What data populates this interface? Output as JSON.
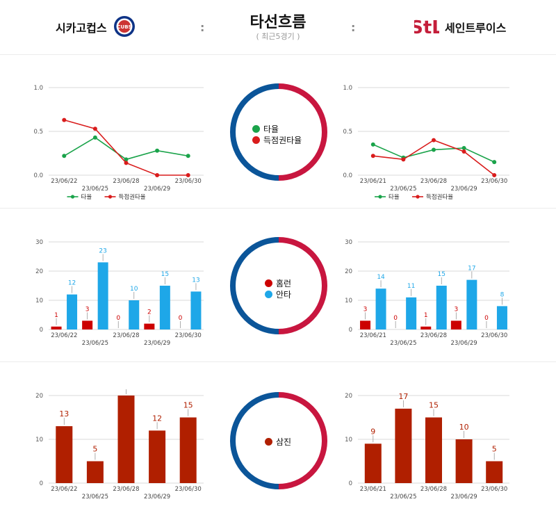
{
  "header": {
    "title": "타선흐름",
    "subtitle": "( 최근5경기 )",
    "left_team": "시카고컵스",
    "right_team": "세인트루이스",
    "left_logo_text": "CUBS",
    "right_logo_text": "StL",
    "separator": ":"
  },
  "colors": {
    "green": "#1aa34a",
    "red_line": "#d91c1c",
    "red_bar": "#cc0000",
    "blue_bar": "#1ea7e8",
    "so_bar": "#b01f00",
    "ring_blue": "#0b5599",
    "ring_red": "#c8163f"
  },
  "legends": {
    "avg": "타율",
    "risp": "득점권타율",
    "hr": "홈런",
    "hits": "안타",
    "so": "삼진"
  },
  "chart_data": [
    {
      "id": "left-avg",
      "type": "line",
      "categories": [
        "23/06/22",
        "23/06/25",
        "23/06/28",
        "23/06/29",
        "23/06/30"
      ],
      "ylim": [
        0,
        1.0
      ],
      "yticks": [
        "0.0",
        "0.5",
        "1.0"
      ],
      "series": [
        {
          "name": "타율",
          "values": [
            0.22,
            0.43,
            0.18,
            0.28,
            0.22
          ]
        },
        {
          "name": "득점권타율",
          "values": [
            0.63,
            0.53,
            0.14,
            0.0,
            0.0
          ]
        }
      ]
    },
    {
      "id": "right-avg",
      "type": "line",
      "categories": [
        "23/06/21",
        "23/06/25",
        "23/06/28",
        "23/06/29",
        "23/06/30"
      ],
      "ylim": [
        0,
        1.0
      ],
      "yticks": [
        "0.0",
        "0.5",
        "1.0"
      ],
      "series": [
        {
          "name": "타율",
          "values": [
            0.35,
            0.2,
            0.29,
            0.31,
            0.15
          ]
        },
        {
          "name": "득점권타율",
          "values": [
            0.22,
            0.18,
            0.4,
            0.27,
            0.0
          ]
        }
      ]
    },
    {
      "id": "left-hits",
      "type": "bar",
      "categories": [
        "23/06/22",
        "23/06/25",
        "23/06/28",
        "23/06/29",
        "23/06/30"
      ],
      "ylim": [
        0,
        30
      ],
      "yticks": [
        "0",
        "10",
        "20",
        "30"
      ],
      "series": [
        {
          "name": "홈런",
          "values": [
            1,
            3,
            0,
            2,
            0
          ]
        },
        {
          "name": "안타",
          "values": [
            12,
            23,
            10,
            15,
            13
          ]
        }
      ]
    },
    {
      "id": "right-hits",
      "type": "bar",
      "categories": [
        "23/06/21",
        "23/06/25",
        "23/06/28",
        "23/06/29",
        "23/06/30"
      ],
      "ylim": [
        0,
        30
      ],
      "yticks": [
        "0",
        "10",
        "20",
        "30"
      ],
      "series": [
        {
          "name": "홈런",
          "values": [
            3,
            0,
            1,
            3,
            0
          ]
        },
        {
          "name": "안타",
          "values": [
            14,
            11,
            15,
            17,
            8
          ]
        }
      ]
    },
    {
      "id": "left-so",
      "type": "bar",
      "categories": [
        "23/06/22",
        "23/06/25",
        "23/06/28",
        "23/06/29",
        "23/06/30"
      ],
      "ylim": [
        0,
        20
      ],
      "yticks": [
        "0",
        "10",
        "20"
      ],
      "series": [
        {
          "name": "삼진",
          "values": [
            13,
            5,
            20,
            12,
            15
          ]
        }
      ]
    },
    {
      "id": "right-so",
      "type": "bar",
      "categories": [
        "23/06/21",
        "23/06/25",
        "23/06/28",
        "23/06/29",
        "23/06/30"
      ],
      "ylim": [
        0,
        20
      ],
      "yticks": [
        "0",
        "10",
        "20"
      ],
      "series": [
        {
          "name": "삼진",
          "values": [
            9,
            17,
            15,
            10,
            5
          ]
        }
      ]
    }
  ]
}
